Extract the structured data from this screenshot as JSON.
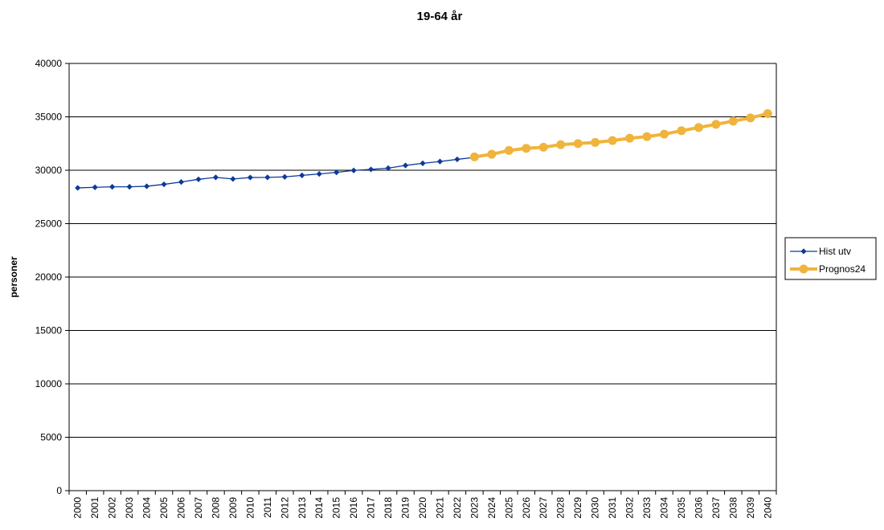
{
  "chart_data": {
    "type": "line",
    "title": "19-64 år",
    "xlabel": "",
    "ylabel": "personer",
    "ylim": [
      0,
      40000
    ],
    "yticks": [
      0,
      5000,
      10000,
      15000,
      20000,
      25000,
      30000,
      35000,
      40000
    ],
    "grid": true,
    "legend_position": "right",
    "categories": [
      "2000",
      "2001",
      "2002",
      "2003",
      "2004",
      "2005",
      "2006",
      "2007",
      "2008",
      "2009",
      "2010",
      "2011",
      "2012",
      "2013",
      "2014",
      "2015",
      "2016",
      "2017",
      "2018",
      "2019",
      "2020",
      "2021",
      "2022",
      "2023",
      "2024",
      "2025",
      "2026",
      "2027",
      "2028",
      "2029",
      "2030",
      "2031",
      "2032",
      "2033",
      "2034",
      "2035",
      "2036",
      "2037",
      "2038",
      "2039",
      "2040"
    ],
    "series": [
      {
        "name": "Hist utv",
        "color": "#0d3a99",
        "marker": "diamond",
        "x": [
          "2000",
          "2001",
          "2002",
          "2003",
          "2004",
          "2005",
          "2006",
          "2007",
          "2008",
          "2009",
          "2010",
          "2011",
          "2012",
          "2013",
          "2014",
          "2015",
          "2016",
          "2017",
          "2018",
          "2019",
          "2020",
          "2021",
          "2022",
          "2023"
        ],
        "values": [
          28350,
          28400,
          28450,
          28450,
          28500,
          28680,
          28900,
          29150,
          29330,
          29180,
          29320,
          29330,
          29380,
          29520,
          29650,
          29800,
          29980,
          30080,
          30200,
          30450,
          30650,
          30820,
          31020,
          31200
        ]
      },
      {
        "name": "Prognos24",
        "color": "#f0b43c",
        "marker": "circle",
        "x": [
          "2023",
          "2024",
          "2025",
          "2026",
          "2027",
          "2028",
          "2029",
          "2030",
          "2031",
          "2032",
          "2033",
          "2034",
          "2035",
          "2036",
          "2037",
          "2038",
          "2039",
          "2040"
        ],
        "values": [
          31250,
          31500,
          31850,
          32050,
          32150,
          32400,
          32500,
          32600,
          32780,
          33000,
          33150,
          33380,
          33700,
          34000,
          34300,
          34600,
          34900,
          35300
        ]
      }
    ]
  }
}
